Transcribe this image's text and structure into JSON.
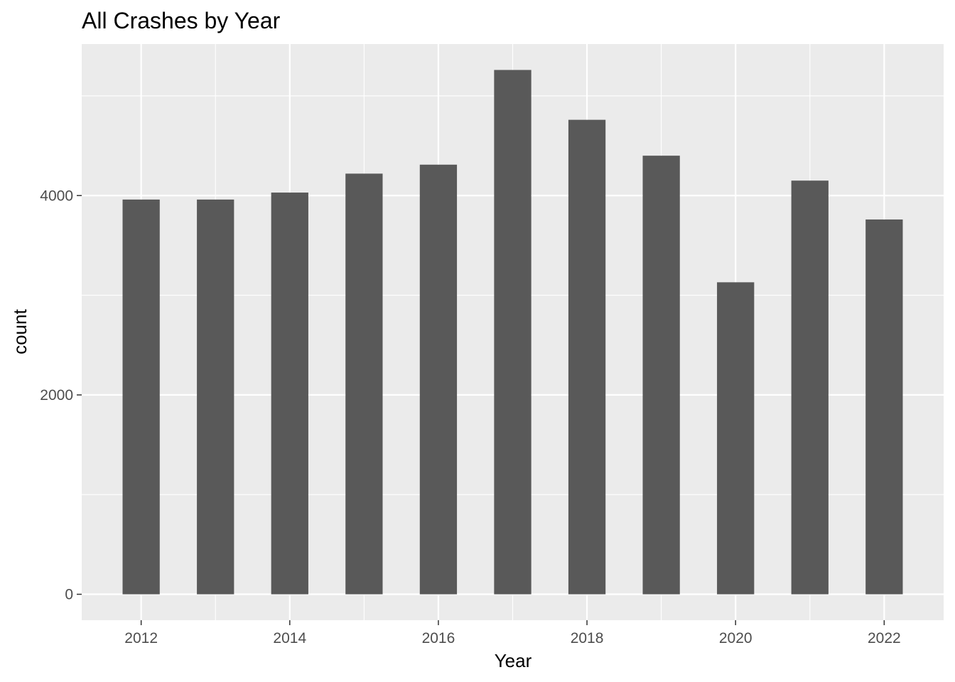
{
  "chart_data": {
    "type": "bar",
    "title": "All Crashes by Year",
    "xlabel": "Year",
    "ylabel": "count",
    "categories": [
      2012,
      2013,
      2014,
      2015,
      2016,
      2017,
      2018,
      2019,
      2020,
      2021,
      2022
    ],
    "values": [
      3960,
      3960,
      4030,
      4220,
      4310,
      5260,
      4760,
      4400,
      3130,
      4150,
      3760
    ],
    "xlim": [
      2011.2,
      2022.8
    ],
    "ylim": [
      -260,
      5520
    ],
    "x_ticks": [
      2012,
      2014,
      2016,
      2018,
      2020,
      2022
    ],
    "x_tick_labels": [
      "2012",
      "2014",
      "2016",
      "2018",
      "2020",
      "2022"
    ],
    "y_ticks": [
      0,
      2000,
      4000
    ],
    "y_tick_labels": [
      "0",
      "2000",
      "4000"
    ],
    "y_minor_ticks": [
      1000,
      3000,
      5000
    ],
    "x_minor_ticks": [
      2013,
      2015,
      2017,
      2019,
      2021
    ],
    "bar_width": 0.5,
    "grid": true,
    "colors": {
      "bar": "#595959",
      "panel": "#ebebeb",
      "grid": "#ffffff",
      "tick": "#333333"
    }
  }
}
